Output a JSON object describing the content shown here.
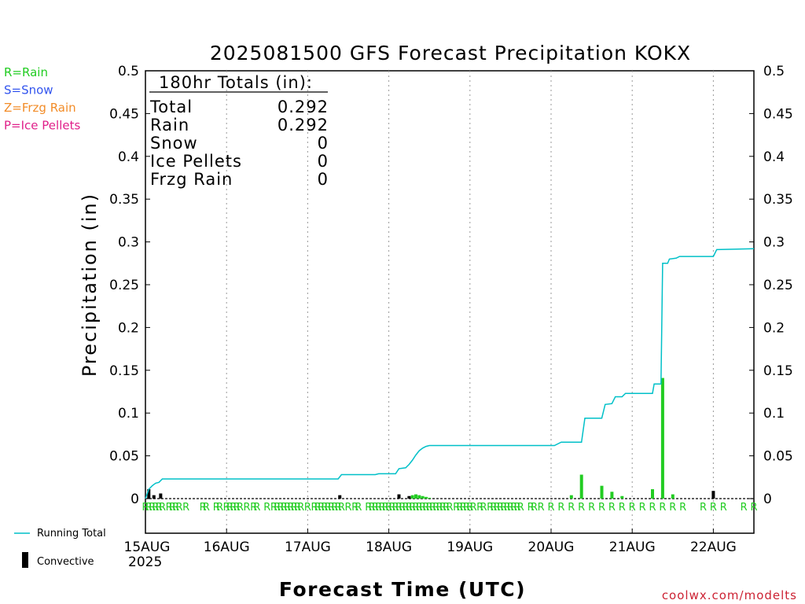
{
  "chart_data": {
    "type": "bar",
    "title": "2025081500 GFS Forecast Precipitation KOKX",
    "ylabel": "Precipitation (in)",
    "xlabel": "Forecast Time (UTC)",
    "ylim": [
      0,
      0.5
    ],
    "xlim": [
      0,
      180
    ],
    "y_ticks": [
      "0",
      "0.05",
      "0.1",
      "0.15",
      "0.2",
      "0.25",
      "0.3",
      "0.35",
      "0.4",
      "0.45",
      "0.5"
    ],
    "x_ticks": [
      {
        "label": "15AUG",
        "hour": 0
      },
      {
        "label": "16AUG",
        "hour": 24
      },
      {
        "label": "17AUG",
        "hour": 48
      },
      {
        "label": "18AUG",
        "hour": 72
      },
      {
        "label": "19AUG",
        "hour": 96
      },
      {
        "label": "20AUG",
        "hour": 120
      },
      {
        "label": "21AUG",
        "hour": 144
      },
      {
        "label": "22AUG",
        "hour": 168
      }
    ],
    "year_label": "2025",
    "grid": "vertical dotted",
    "ptype_legend": [
      {
        "label": "R=Rain",
        "color": "#22cc22"
      },
      {
        "label": "S=Snow",
        "color": "#3355ee"
      },
      {
        "label": "Z=Frzg Rain",
        "color": "#f28c28"
      },
      {
        "label": "P=Ice Pellets",
        "color": "#e0208a"
      }
    ],
    "series_legend": {
      "running_total": "Running Total",
      "convective": "Convective"
    },
    "totals_box": {
      "header": "180hr Totals (in):",
      "rows": [
        {
          "label": "Total",
          "value": "0.292"
        },
        {
          "label": "Rain",
          "value": "0.292"
        },
        {
          "label": "Snow",
          "value": "0"
        },
        {
          "label": "Ice Pellets",
          "value": "0"
        },
        {
          "label": "Frzg Rain",
          "value": "0"
        }
      ]
    },
    "precip_bars": [
      {
        "hour": 1,
        "value": 0.011,
        "convective": true
      },
      {
        "hour": 2.5,
        "value": 0.004,
        "convective": true
      },
      {
        "hour": 4.5,
        "value": 0.006,
        "convective": true
      },
      {
        "hour": 57.5,
        "value": 0.004,
        "convective": true
      },
      {
        "hour": 75,
        "value": 0.005,
        "convective": true
      },
      {
        "hour": 78,
        "value": 0.003,
        "convective": true
      },
      {
        "hour": 79,
        "value": 0.004,
        "convective": false
      },
      {
        "hour": 80,
        "value": 0.005,
        "convective": false
      },
      {
        "hour": 81,
        "value": 0.004,
        "convective": false
      },
      {
        "hour": 82,
        "value": 0.003,
        "convective": false
      },
      {
        "hour": 83,
        "value": 0.002,
        "convective": false
      },
      {
        "hour": 84,
        "value": 0.001,
        "convective": false
      },
      {
        "hour": 126,
        "value": 0.004,
        "convective": false
      },
      {
        "hour": 129,
        "value": 0.028,
        "convective": false
      },
      {
        "hour": 135,
        "value": 0.015,
        "convective": false
      },
      {
        "hour": 138,
        "value": 0.008,
        "convective": false
      },
      {
        "hour": 141,
        "value": 0.003,
        "convective": false
      },
      {
        "hour": 150,
        "value": 0.011,
        "convective": false
      },
      {
        "hour": 153,
        "value": 0.141,
        "convective": false
      },
      {
        "hour": 156,
        "value": 0.005,
        "convective": false
      },
      {
        "hour": 168,
        "value": 0.009,
        "convective": true
      }
    ],
    "series": [
      {
        "name": "Running Total",
        "color": "#00c0c8",
        "x": [
          0,
          1,
          2,
          3,
          4,
          5,
          57,
          58,
          68,
          69,
          74,
          75,
          77,
          78,
          79,
          80,
          81,
          82,
          83,
          84,
          85,
          86,
          120,
          121,
          123,
          123.5,
          129,
          130,
          135,
          136,
          138,
          139,
          141,
          142,
          150,
          150.5,
          152,
          152.5,
          153,
          154.5,
          155,
          157,
          158,
          167,
          168,
          169,
          180
        ],
        "y": [
          0,
          0.011,
          0.015,
          0.018,
          0.019,
          0.023,
          0.023,
          0.028,
          0.028,
          0.029,
          0.029,
          0.035,
          0.036,
          0.04,
          0.045,
          0.051,
          0.056,
          0.059,
          0.061,
          0.062,
          0.062,
          0.062,
          0.062,
          0.062,
          0.066,
          0.066,
          0.066,
          0.094,
          0.094,
          0.11,
          0.111,
          0.119,
          0.119,
          0.123,
          0.123,
          0.134,
          0.134,
          0.134,
          0.275,
          0.275,
          0.28,
          0.281,
          0.283,
          0.283,
          0.283,
          0.291,
          0.292
        ]
      }
    ],
    "ptype_markers": {
      "symbol": "R",
      "hours": [
        0,
        1,
        2,
        3,
        4,
        5,
        7,
        8,
        9,
        10,
        12,
        17,
        18,
        21,
        22,
        24,
        25,
        26,
        27,
        28,
        30,
        32,
        33,
        36,
        38,
        39,
        40,
        41,
        42,
        43,
        44,
        45,
        46,
        48,
        50,
        51,
        52,
        53,
        54,
        55,
        56,
        57,
        58,
        60,
        62,
        63,
        66,
        67,
        68,
        69,
        70,
        71,
        72,
        73,
        74,
        75,
        76,
        77,
        78,
        79,
        80,
        81,
        82,
        83,
        84,
        85,
        86,
        87,
        88,
        89,
        90,
        92,
        93,
        94,
        95,
        96,
        97,
        99,
        100,
        102,
        103,
        104,
        105,
        106,
        107,
        108,
        109,
        110,
        111,
        114,
        115,
        117,
        120,
        123,
        126,
        129,
        132,
        135,
        138,
        141,
        144,
        147,
        150,
        153,
        156,
        159,
        165,
        168,
        171,
        177,
        180
      ]
    }
  },
  "credit": "coolwx.com/modelts"
}
